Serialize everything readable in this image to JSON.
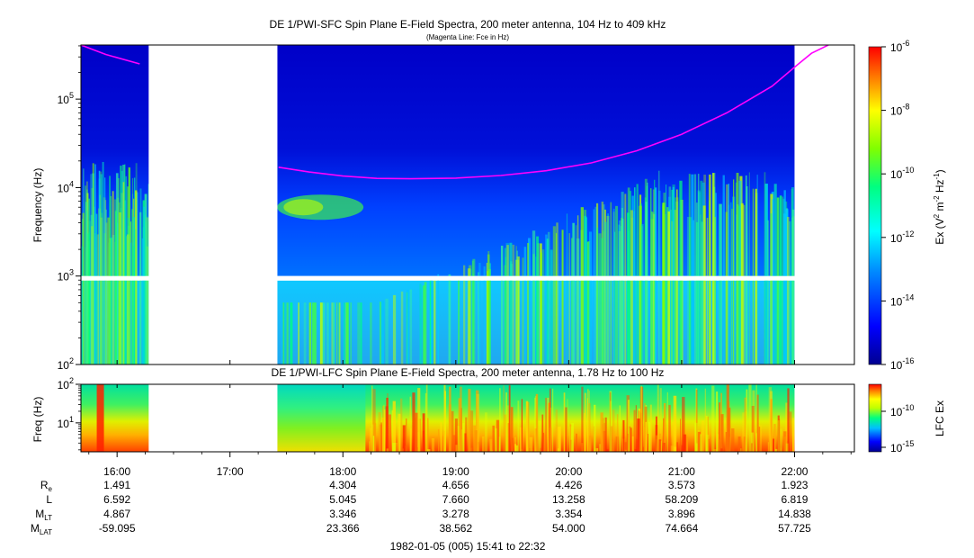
{
  "chart_data": [
    {
      "type": "heatmap",
      "title": "DE 1/PWI-SFC  Spin Plane E-Field Spectra, 200 meter antenna, 104 Hz to 409 kHz",
      "subtitle": "(Magenta Line: Fce in Hz)",
      "ylabel": "Frequency (Hz)",
      "ylim": [
        100,
        409000
      ],
      "yscale": "log",
      "yticks": [
        {
          "base": "10",
          "exp": "2",
          "value": 100
        },
        {
          "base": "10",
          "exp": "3",
          "value": 1000
        },
        {
          "base": "10",
          "exp": "4",
          "value": 10000
        },
        {
          "base": "10",
          "exp": "5",
          "value": 100000
        }
      ],
      "data_gaps_hours": [
        [
          16.28,
          17.42
        ],
        [
          22.0,
          22.53
        ]
      ],
      "fce_line": {
        "color": "#ff00ff",
        "x_hours": [
          15.68,
          15.9,
          16.2,
          17.43,
          17.7,
          18.0,
          18.3,
          18.6,
          19.0,
          19.4,
          19.8,
          20.2,
          20.6,
          21.0,
          21.4,
          21.8,
          22.0,
          22.15,
          22.3
        ],
        "fce_hz": [
          409000,
          320000,
          250000,
          17000,
          15000,
          13500,
          12700,
          12600,
          12800,
          13700,
          15500,
          19000,
          26000,
          40000,
          70000,
          140000,
          230000,
          330000,
          409000
        ]
      },
      "colorbar": {
        "label": "Ex (V",
        "label_sup1": "2",
        "label_mid": " m",
        "label_sup2": "-2",
        "label_mid2": " Hz",
        "label_sup3": "-1",
        "label_end": ")",
        "ticks": [
          {
            "base": "10",
            "exp": "-6"
          },
          {
            "base": "10",
            "exp": "-8"
          },
          {
            "base": "10",
            "exp": "-10"
          },
          {
            "base": "10",
            "exp": "-12"
          },
          {
            "base": "10",
            "exp": "-14"
          },
          {
            "base": "10",
            "exp": "-16"
          }
        ]
      }
    },
    {
      "type": "heatmap",
      "title": "DE 1/PWI-LFC  Spin Plane E-Field Spectra, 200 meter antenna, 1.78 Hz to 100 Hz",
      "ylabel": "Freq (Hz)",
      "ylim": [
        1.78,
        100
      ],
      "yscale": "log",
      "yticks": [
        {
          "base": "10",
          "exp": "2"
        },
        {
          "base": "10",
          "exp": "1"
        }
      ],
      "data_gaps_hours": [
        [
          16.28,
          17.42
        ],
        [
          22.0,
          22.53
        ]
      ],
      "colorbar": {
        "label": "LFC Ex",
        "ticks": [
          {
            "base": "10",
            "exp": "-10"
          },
          {
            "base": "10",
            "exp": "-15"
          }
        ]
      }
    }
  ],
  "x_axis": {
    "range_hours": [
      15.68,
      22.53
    ],
    "ticks": [
      {
        "label": "16:00",
        "hour": 16
      },
      {
        "label": "17:00",
        "hour": 17
      },
      {
        "label": "18:00",
        "hour": 18
      },
      {
        "label": "19:00",
        "hour": 19
      },
      {
        "label": "20:00",
        "hour": 20
      },
      {
        "label": "21:00",
        "hour": 21
      },
      {
        "label": "22:00",
        "hour": 22
      }
    ]
  },
  "ephemeris": {
    "rows": [
      {
        "label": "R",
        "sub": "e",
        "values": [
          "1.491",
          "",
          "4.304",
          "4.656",
          "4.426",
          "3.573",
          "1.923"
        ]
      },
      {
        "label": "L",
        "sub": "",
        "values": [
          "6.592",
          "",
          "5.045",
          "7.660",
          "13.258",
          "58.209",
          "6.819"
        ]
      },
      {
        "label": "M",
        "sub": "LT",
        "values": [
          "4.867",
          "",
          "3.346",
          "3.278",
          "3.354",
          "3.896",
          "14.838"
        ]
      },
      {
        "label": "M",
        "sub": "LAT",
        "values": [
          "-59.095",
          "",
          "23.366",
          "38.562",
          "54.000",
          "74.664",
          "57.725"
        ]
      }
    ]
  },
  "footer": "1982-01-05 (005) 15:41 to 22:32"
}
